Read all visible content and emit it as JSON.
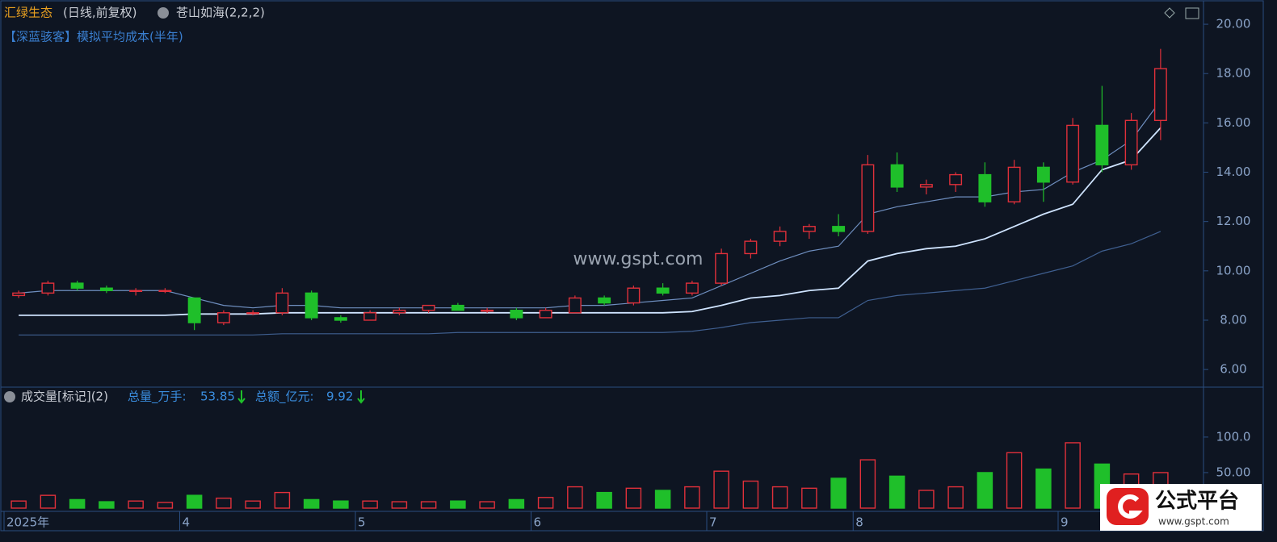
{
  "header": {
    "stock": "汇绿生态",
    "period": "(日线,前复权)",
    "indicator": "苍山如海(2,2,2)",
    "cost_label": "【深蓝骇客】模拟平均成本(半年)"
  },
  "volume_header": {
    "title": "成交量[标记](2)",
    "total_label": "总量_万手:",
    "total_value": 53.85,
    "amount_label": "总额_亿元:",
    "amount_value": 9.92
  },
  "watermark": {
    "center": "www.gspt.com",
    "logo_text": "公式平台",
    "logo_url": "www.gspt.com"
  },
  "chart_data": [
    {
      "type": "candlestick",
      "up_color": "#e0303a",
      "down_color": "#1fbf2a",
      "open": [
        9.0,
        9.1,
        9.5,
        9.3,
        9.2,
        9.2,
        8.9,
        7.9,
        8.3,
        8.3,
        9.1,
        8.1,
        8.0,
        8.3,
        8.4,
        8.6,
        8.4,
        8.4,
        8.1,
        8.3,
        8.9,
        8.7,
        9.3,
        9.1,
        9.5,
        10.7,
        11.2,
        11.6,
        11.8,
        11.6,
        14.3,
        13.4,
        13.5,
        13.9,
        12.8,
        14.2,
        13.6,
        15.9,
        14.3,
        16.1
      ],
      "high": [
        9.2,
        9.6,
        9.6,
        9.4,
        9.3,
        9.3,
        8.9,
        8.4,
        8.4,
        9.3,
        9.2,
        8.2,
        8.4,
        8.5,
        8.6,
        8.7,
        8.5,
        8.5,
        8.5,
        9.0,
        9.0,
        9.4,
        9.5,
        9.6,
        10.9,
        11.3,
        11.8,
        11.9,
        12.3,
        14.7,
        14.8,
        13.7,
        14.0,
        14.4,
        14.5,
        14.4,
        16.2,
        17.5,
        16.4,
        19.0
      ],
      "low": [
        8.9,
        9.0,
        9.2,
        9.1,
        9.0,
        9.1,
        7.6,
        7.8,
        8.2,
        8.2,
        8.0,
        7.9,
        8.0,
        8.2,
        8.3,
        8.4,
        8.3,
        8.0,
        8.1,
        8.3,
        8.6,
        8.6,
        9.0,
        9.0,
        9.4,
        10.5,
        11.0,
        11.3,
        11.4,
        11.5,
        13.2,
        13.1,
        13.2,
        12.6,
        12.7,
        12.8,
        13.5,
        14.0,
        14.1,
        15.3
      ],
      "close": [
        9.1,
        9.5,
        9.3,
        9.2,
        9.2,
        9.2,
        7.9,
        8.3,
        8.3,
        9.1,
        8.1,
        8.0,
        8.3,
        8.4,
        8.6,
        8.4,
        8.4,
        8.1,
        8.4,
        8.9,
        8.7,
        9.3,
        9.1,
        9.5,
        10.7,
        11.2,
        11.6,
        11.8,
        11.6,
        14.3,
        13.4,
        13.5,
        13.9,
        12.8,
        14.2,
        13.6,
        15.9,
        14.3,
        16.1,
        18.2
      ],
      "lines": [
        {
          "color": "#6f8fc0",
          "values": [
            9.1,
            9.2,
            9.2,
            9.2,
            9.2,
            9.2,
            8.9,
            8.6,
            8.5,
            8.6,
            8.6,
            8.5,
            8.5,
            8.5,
            8.5,
            8.5,
            8.5,
            8.5,
            8.5,
            8.6,
            8.6,
            8.7,
            8.8,
            8.9,
            9.4,
            9.9,
            10.4,
            10.8,
            11.0,
            12.3,
            12.6,
            12.8,
            13.0,
            13.0,
            13.2,
            13.3,
            14.0,
            14.5,
            15.3,
            16.9
          ]
        },
        {
          "color": "#cfe4ff",
          "values": [
            8.2,
            8.2,
            8.2,
            8.2,
            8.2,
            8.2,
            8.25,
            8.25,
            8.25,
            8.3,
            8.3,
            8.3,
            8.3,
            8.3,
            8.3,
            8.3,
            8.3,
            8.3,
            8.3,
            8.3,
            8.3,
            8.3,
            8.3,
            8.35,
            8.6,
            8.9,
            9.0,
            9.2,
            9.3,
            10.4,
            10.7,
            10.9,
            11.0,
            11.3,
            11.8,
            12.3,
            12.7,
            14.1,
            14.5,
            15.8
          ]
        },
        {
          "color": "#3f5f90",
          "values": [
            7.4,
            7.4,
            7.4,
            7.4,
            7.4,
            7.4,
            7.4,
            7.4,
            7.4,
            7.45,
            7.45,
            7.45,
            7.45,
            7.45,
            7.45,
            7.5,
            7.5,
            7.5,
            7.5,
            7.5,
            7.5,
            7.5,
            7.5,
            7.55,
            7.7,
            7.9,
            8.0,
            8.1,
            8.1,
            8.8,
            9.0,
            9.1,
            9.2,
            9.3,
            9.6,
            9.9,
            10.2,
            10.8,
            11.1,
            11.6
          ]
        }
      ],
      "ylim": [
        5.35,
        20.82
      ],
      "yticks": [
        {
          "value": 6,
          "label": "6.00"
        },
        {
          "value": 8,
          "label": "8.00"
        },
        {
          "value": 10,
          "label": "10.00"
        },
        {
          "value": 12,
          "label": "12.00"
        },
        {
          "value": 14,
          "label": "14.00"
        },
        {
          "value": 16,
          "label": "16.00"
        },
        {
          "value": 18,
          "label": "18.00"
        },
        {
          "value": 20,
          "label": "20.00"
        }
      ]
    },
    {
      "type": "bar",
      "categories": [
        "2025年",
        null,
        null,
        null,
        null,
        null,
        "4",
        null,
        null,
        null,
        null,
        null,
        "5",
        null,
        null,
        null,
        null,
        null,
        "6",
        null,
        null,
        null,
        null,
        null,
        "7",
        null,
        null,
        null,
        null,
        "8",
        null,
        null,
        null,
        null,
        null,
        null,
        "9",
        null,
        null,
        null
      ],
      "values": [
        10,
        18,
        12,
        9,
        10,
        8,
        18,
        14,
        10,
        22,
        12,
        10,
        10,
        9,
        9,
        10,
        9,
        12,
        15,
        30,
        22,
        28,
        25,
        30,
        52,
        38,
        30,
        28,
        42,
        68,
        45,
        25,
        30,
        50,
        78,
        55,
        92,
        62,
        48,
        50
      ],
      "ylim": [
        0,
        168
      ],
      "yticks": [
        {
          "value": 50,
          "label": "50.00"
        },
        {
          "value": 100,
          "label": "100.0"
        }
      ]
    }
  ]
}
